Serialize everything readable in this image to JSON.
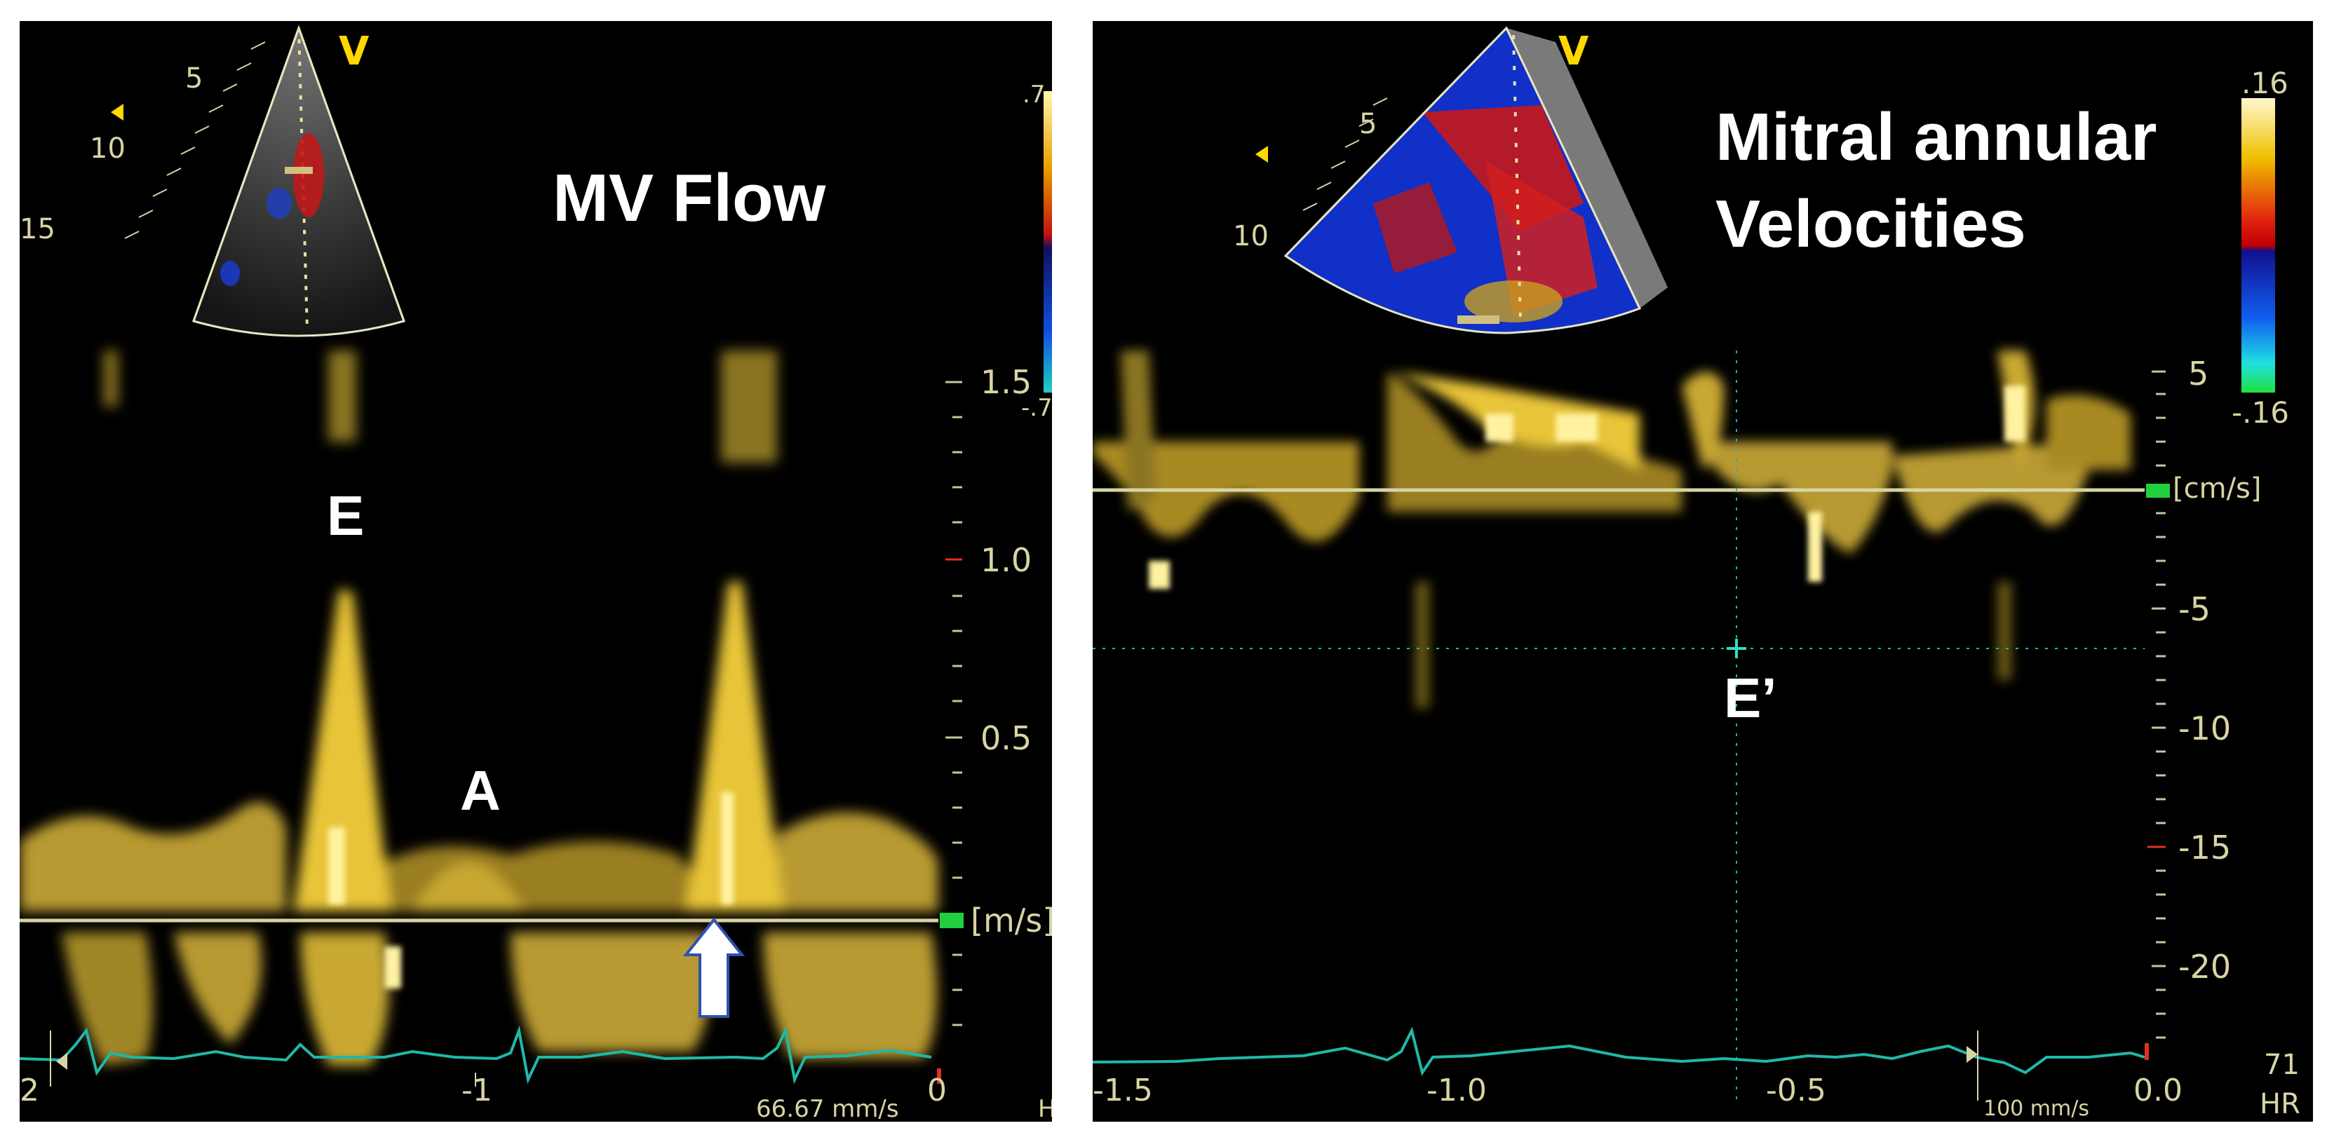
{
  "colors": {
    "background": "#000000",
    "doppler": "#ffd43a",
    "baseline": "#d8d4a4",
    "ecg": "#1fb8a8",
    "label": "#ffffff",
    "scale": "#d8d4a4"
  },
  "left_panel": {
    "title": "MV Flow",
    "sector_depths": [
      "5",
      "10",
      "15"
    ],
    "sector_mark": "V",
    "colorbar_top": ".7",
    "colorbar_bottom": "-.7",
    "peak_e": "E",
    "peak_a": "A",
    "y_ticks": [
      "1.5",
      "1.0",
      "0.5"
    ],
    "unit": "[m/s]",
    "x_ticks": [
      "2",
      "-1",
      "0"
    ],
    "sweep": "66.67 mm/s",
    "hr_label": "H"
  },
  "right_panel": {
    "title_line1": "Mitral annular",
    "title_line2": "Velocities",
    "sector_depths": [
      "5",
      "10"
    ],
    "sector_mark": "V",
    "colorbar_top": ".16",
    "colorbar_bottom": "-.16",
    "peak_e_prime": "E’",
    "y_ticks": [
      "5",
      "-5",
      "-10",
      "-15",
      "-20"
    ],
    "unit": "[cm/s]",
    "x_ticks": [
      "-1.5",
      "-1.0",
      "-0.5",
      "0.0"
    ],
    "sweep": "100 mm/s",
    "hr_value": "71",
    "hr_label": "HR"
  }
}
